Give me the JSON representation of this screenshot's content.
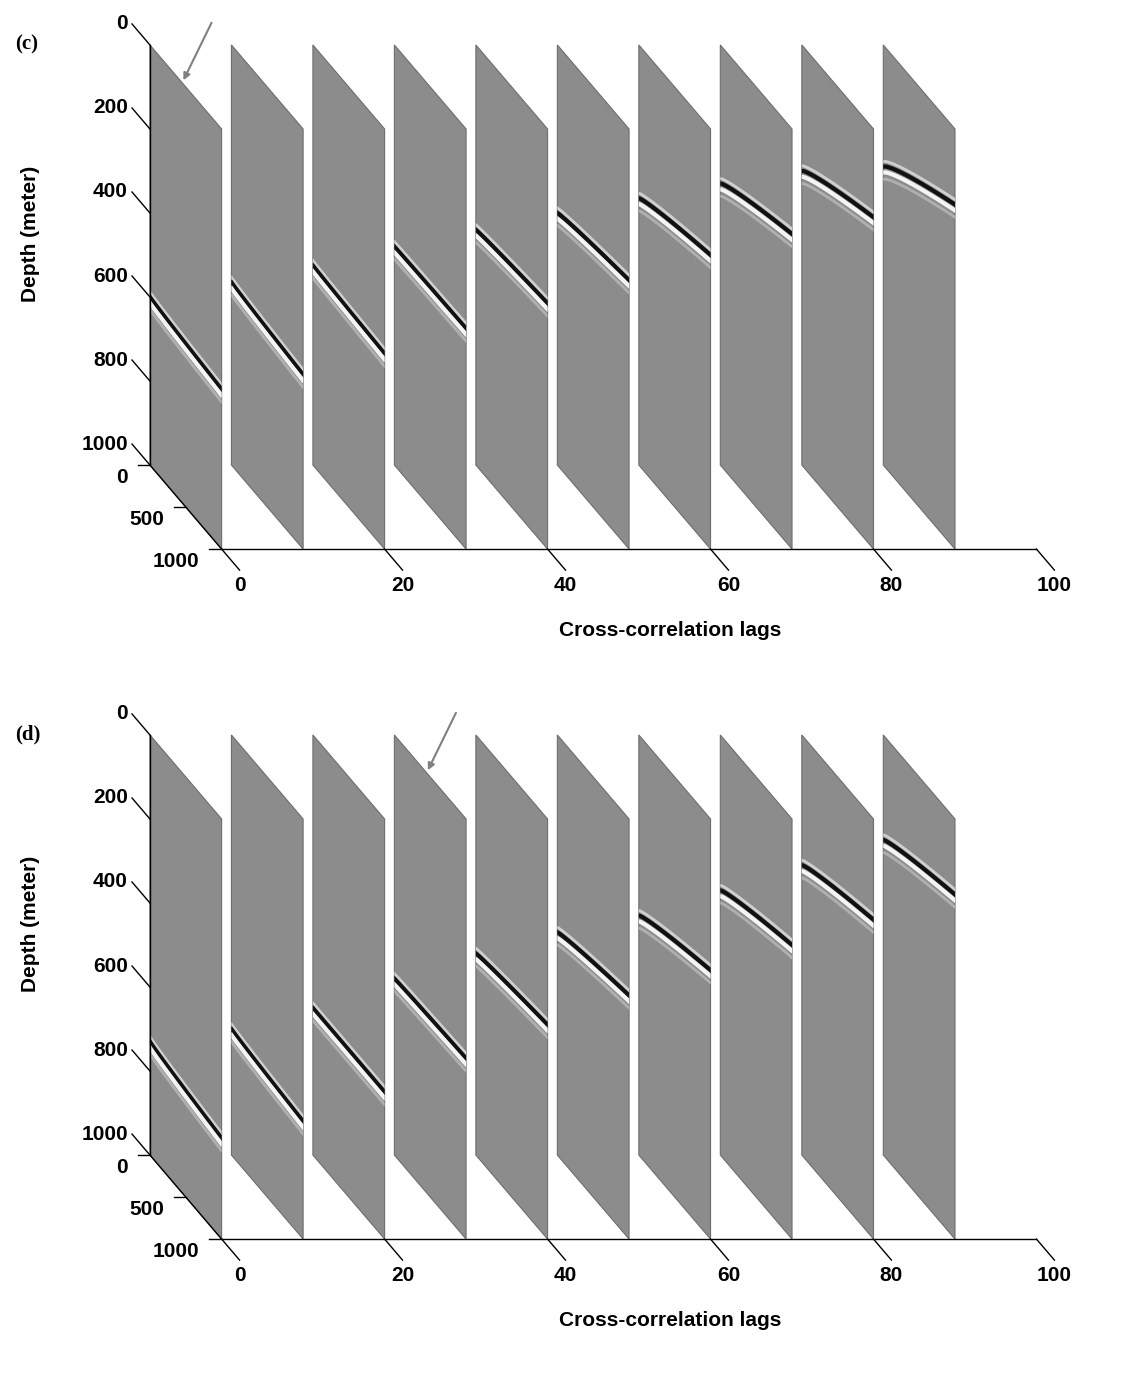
{
  "chart_data": [
    {
      "type": "slices",
      "panel_label": "(c)",
      "xlabel": "Cross-correlation lags",
      "ylabel": "Depth (meter)",
      "lags": [
        0,
        10,
        20,
        30,
        40,
        50,
        60,
        70,
        80,
        90
      ],
      "xlim": [
        0,
        100
      ],
      "xticks": [
        0,
        20,
        40,
        60,
        80,
        100
      ],
      "ylim": [
        0,
        1000
      ],
      "yticks": [
        0,
        200,
        400,
        600,
        800,
        1000
      ],
      "zlim": [
        0,
        1000
      ],
      "zticks": [
        0,
        500,
        1000
      ],
      "event_start_depth": [
        600,
        565,
        525,
        480,
        440,
        400,
        365,
        330,
        300,
        290
      ],
      "event_end_depth": [
        620,
        585,
        535,
        475,
        415,
        360,
        300,
        250,
        210,
        180
      ],
      "arrow_lag": 0,
      "color": "#8c8c8c"
    },
    {
      "type": "slices",
      "panel_label": "(d)",
      "xlabel": "Cross-correlation lags",
      "ylabel": "Depth (meter)",
      "lags": [
        0,
        10,
        20,
        30,
        40,
        50,
        60,
        70,
        80,
        90
      ],
      "xlim": [
        0,
        100
      ],
      "xticks": [
        0,
        20,
        40,
        60,
        80,
        100
      ],
      "ylim": [
        0,
        1000
      ],
      "yticks": [
        0,
        200,
        400,
        600,
        800,
        1000
      ],
      "zlim": [
        0,
        1000
      ],
      "zticks": [
        0,
        500,
        1000
      ],
      "event_start_depth": [
        730,
        700,
        650,
        580,
        520,
        470,
        430,
        370,
        310,
        250
      ],
      "event_end_depth": [
        760,
        720,
        650,
        570,
        490,
        420,
        360,
        300,
        240,
        180
      ],
      "arrow_lag": 30,
      "color": "#8c8c8c"
    }
  ]
}
